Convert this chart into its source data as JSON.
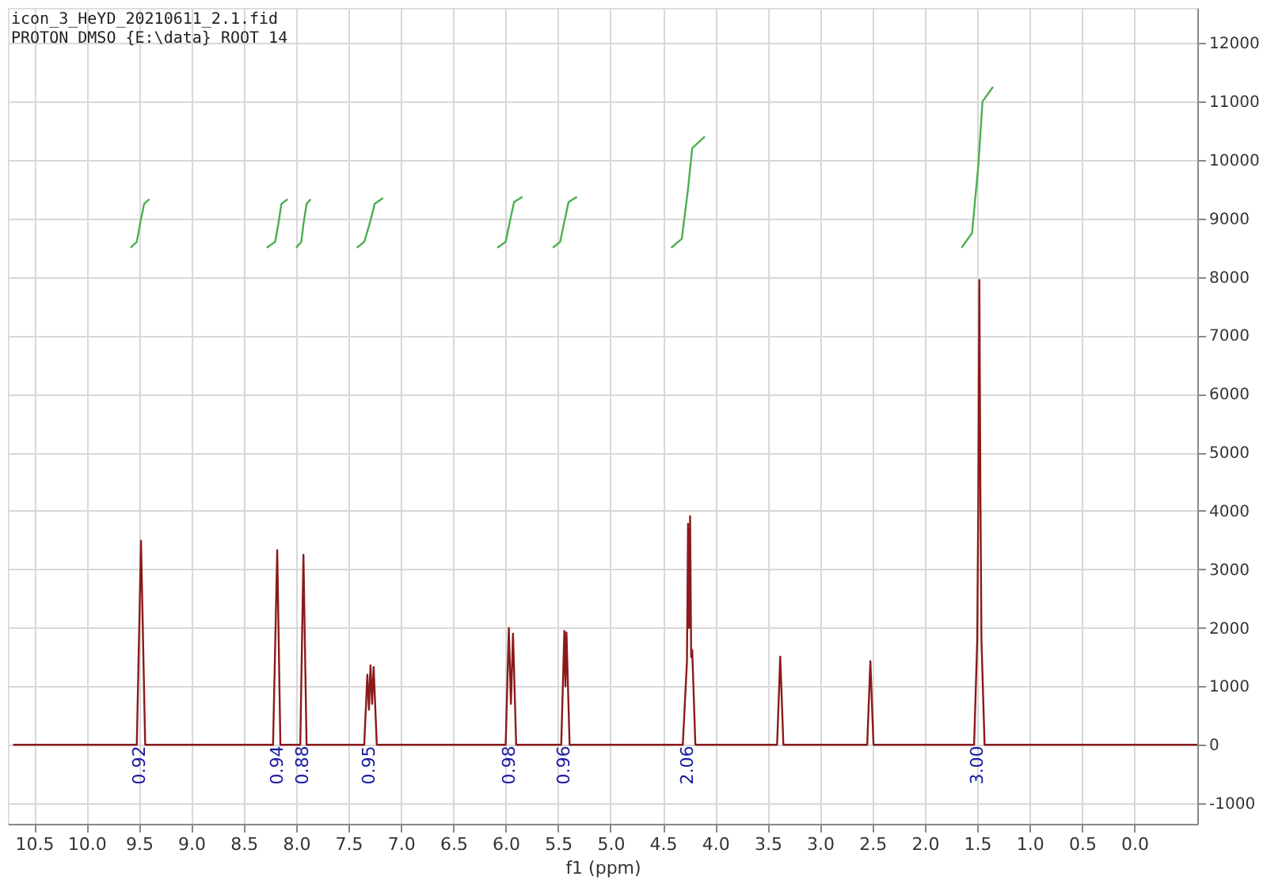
{
  "chart_data": {
    "type": "line",
    "xlabel": "f1 (ppm)",
    "xlim": [
      10.75,
      -0.6
    ],
    "ylim": [
      -1350,
      12600
    ],
    "xticks": [
      {
        "value": 10.5,
        "label": "10.5"
      },
      {
        "value": 10,
        "label": "10.0"
      },
      {
        "value": 9.5,
        "label": "9.5"
      },
      {
        "value": 9,
        "label": "9.0"
      },
      {
        "value": 8.5,
        "label": "8.5"
      },
      {
        "value": 8,
        "label": "8.0"
      },
      {
        "value": 7.5,
        "label": "7.5"
      },
      {
        "value": 7,
        "label": "7.0"
      },
      {
        "value": 6.5,
        "label": "6.5"
      },
      {
        "value": 6,
        "label": "6.0"
      },
      {
        "value": 5.5,
        "label": "5.5"
      },
      {
        "value": 5,
        "label": "5.0"
      },
      {
        "value": 4.5,
        "label": "4.5"
      },
      {
        "value": 4,
        "label": "4.0"
      },
      {
        "value": 3.5,
        "label": "3.5"
      },
      {
        "value": 3,
        "label": "3.0"
      },
      {
        "value": 2.5,
        "label": "2.5"
      },
      {
        "value": 2,
        "label": "2.0"
      },
      {
        "value": 1.5,
        "label": "1.5"
      },
      {
        "value": 1,
        "label": "1.0"
      },
      {
        "value": 0.5,
        "label": "0.5"
      },
      {
        "value": 0,
        "label": "0.0"
      }
    ],
    "yticks": [
      -1000,
      0,
      1000,
      2000,
      3000,
      4000,
      5000,
      6000,
      7000,
      8000,
      9000,
      10000,
      11000,
      12000
    ],
    "grid": true,
    "marker": "none",
    "line_style": "solid",
    "annotations": [
      "icon_3_HeYD_20210611_2.1.fid",
      "PROTON DMSO {E:\\data} ROOT 14",
      "0.92",
      "0.94",
      "0.88",
      "0.95",
      "0.98",
      "0.96",
      "2.06",
      "3.00"
    ],
    "series": [
      {
        "color": "#8b1a1a",
        "x": [
          10.7,
          9.52,
          9.48,
          9.44,
          8.22,
          8.18,
          8.15,
          7.96,
          7.93,
          7.9,
          7.35,
          7.32,
          7.305,
          7.29,
          7.275,
          7.26,
          7.23,
          6.0,
          5.97,
          5.95,
          5.93,
          5.9,
          5.47,
          5.44,
          5.43,
          5.42,
          5.39,
          4.31,
          4.27,
          4.26,
          4.25,
          4.24,
          4.23,
          4.22,
          4.19,
          3.41,
          3.38,
          3.35,
          2.55,
          2.52,
          2.49,
          1.53,
          1.5,
          1.49,
          1.48,
          1.47,
          1.46,
          1.43,
          -0.6
        ],
        "values": [
          0,
          0,
          3490,
          0,
          0,
          3330,
          0,
          0,
          3250,
          0,
          0,
          1200,
          600,
          1360,
          700,
          1330,
          0,
          0,
          2000,
          700,
          1900,
          0,
          0,
          1950,
          1000,
          1920,
          0,
          0,
          1430,
          3780,
          2000,
          3910,
          1500,
          1620,
          0,
          0,
          1510,
          0,
          0,
          1430,
          0,
          0,
          1800,
          4150,
          7950,
          4350,
          1800,
          0,
          0
        ]
      },
      {
        "color": "#4caf50",
        "x": [
          9.58,
          9.52,
          9.49,
          9.45,
          9.4
        ],
        "values": [
          8500,
          8600,
          8900,
          9250,
          9330
        ]
      },
      {
        "color": "#4caf50",
        "x": [
          8.28,
          8.2,
          8.17,
          8.14,
          8.08
        ],
        "values": [
          8500,
          8600,
          8900,
          9250,
          9330
        ]
      },
      {
        "color": "#4caf50",
        "x": [
          8.0,
          7.95,
          7.93,
          7.9,
          7.86
        ],
        "values": [
          8500,
          8600,
          8900,
          9250,
          9330
        ]
      },
      {
        "color": "#4caf50",
        "x": [
          7.42,
          7.35,
          7.3,
          7.25,
          7.17
        ],
        "values": [
          8500,
          8600,
          8900,
          9250,
          9350
        ]
      },
      {
        "color": "#4caf50",
        "x": [
          6.08,
          6.0,
          5.96,
          5.92,
          5.84
        ],
        "values": [
          8500,
          8600,
          8950,
          9280,
          9370
        ]
      },
      {
        "color": "#4caf50",
        "x": [
          5.55,
          5.48,
          5.44,
          5.4,
          5.32
        ],
        "values": [
          8500,
          8600,
          8950,
          9280,
          9370
        ]
      },
      {
        "color": "#4caf50",
        "x": [
          4.42,
          4.32,
          4.26,
          4.22,
          4.1
        ],
        "values": [
          8500,
          8650,
          9500,
          10200,
          10400
        ]
      },
      {
        "color": "#4caf50",
        "x": [
          1.65,
          1.55,
          1.49,
          1.45,
          1.35
        ],
        "values": [
          8500,
          8750,
          9900,
          11000,
          11250
        ]
      }
    ]
  }
}
